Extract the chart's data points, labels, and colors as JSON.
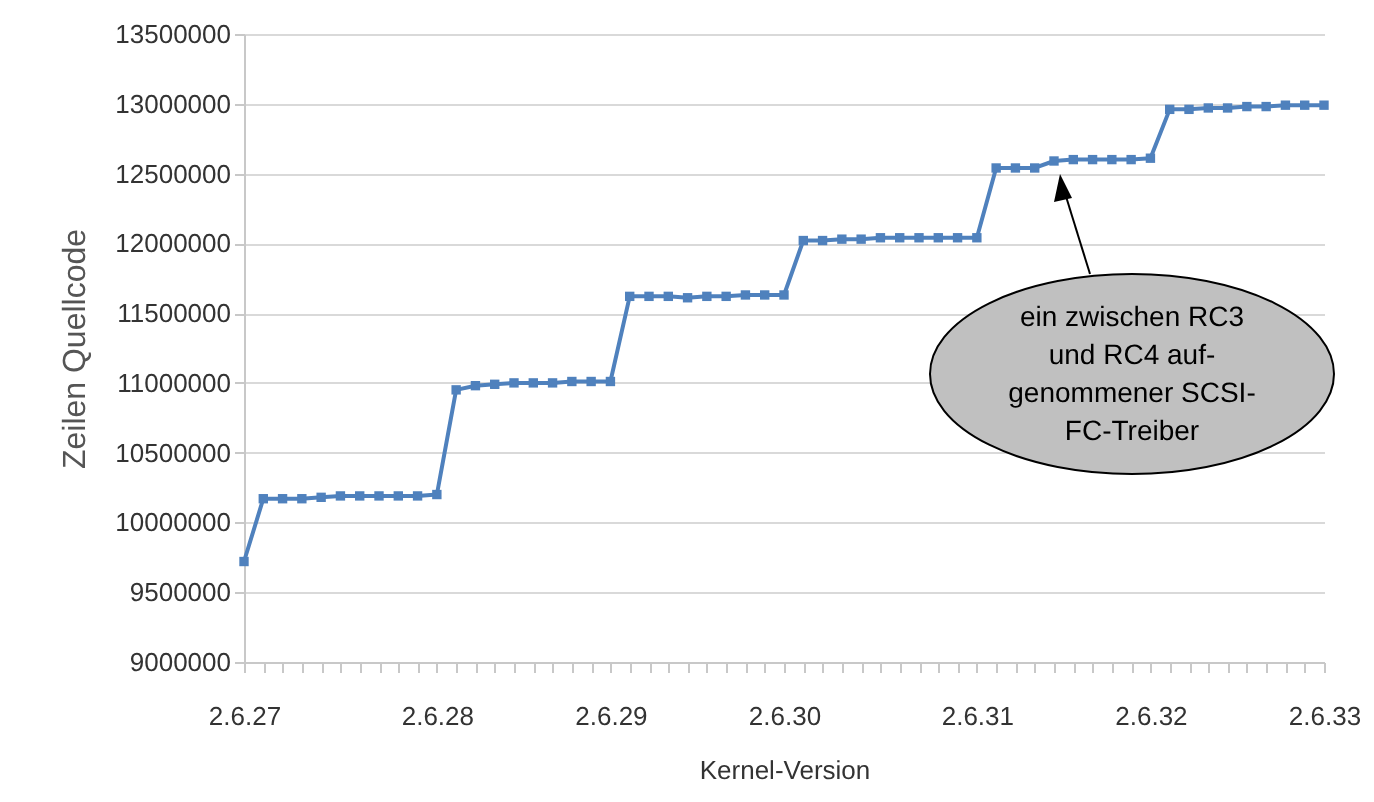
{
  "chart_data": {
    "type": "line",
    "xlabel": "Kernel-Version",
    "ylabel": "Zeilen Quellcode",
    "categories": [
      "2.6.27",
      null,
      null,
      null,
      null,
      null,
      null,
      null,
      null,
      null,
      "2.6.28",
      null,
      null,
      null,
      null,
      null,
      null,
      null,
      null,
      "2.6.29",
      null,
      null,
      null,
      null,
      null,
      null,
      null,
      null,
      "2.6.30",
      null,
      null,
      null,
      null,
      null,
      null,
      null,
      null,
      null,
      "2.6.31",
      null,
      null,
      null,
      null,
      null,
      null,
      null,
      null,
      "2.6.32",
      null,
      null,
      null,
      null,
      null,
      null,
      null,
      null,
      "2.6.33"
    ],
    "series": [
      {
        "color": "#4f81bd",
        "values": [
          9720000,
          10170000,
          10170000,
          10170000,
          10180000,
          10190000,
          10190000,
          10190000,
          10190000,
          10190000,
          10200000,
          10950000,
          10980000,
          10990000,
          11000000,
          11000000,
          11000000,
          11010000,
          11010000,
          11010000,
          11620000,
          11620000,
          11620000,
          11610000,
          11620000,
          11620000,
          11630000,
          11630000,
          11630000,
          12020000,
          12020000,
          12030000,
          12030000,
          12040000,
          12040000,
          12040000,
          12040000,
          12040000,
          12040000,
          12540000,
          12540000,
          12540000,
          12590000,
          12600000,
          12600000,
          12600000,
          12600000,
          12610000,
          12960000,
          12960000,
          12970000,
          12970000,
          12980000,
          12980000,
          12990000,
          12990000,
          12990000
        ]
      }
    ],
    "ylim": [
      9000000,
      13500000
    ],
    "yticks": [
      9000000,
      9500000,
      10000000,
      10500000,
      11000000,
      11500000,
      12000000,
      12500000,
      13000000,
      13500000
    ],
    "grid": "y",
    "marker": "square",
    "line_style": "solid",
    "annotations": [
      "ein zwischen RC3\nund RC4 auf-\ngenommener SCSI-\nFC-Treiber"
    ]
  }
}
